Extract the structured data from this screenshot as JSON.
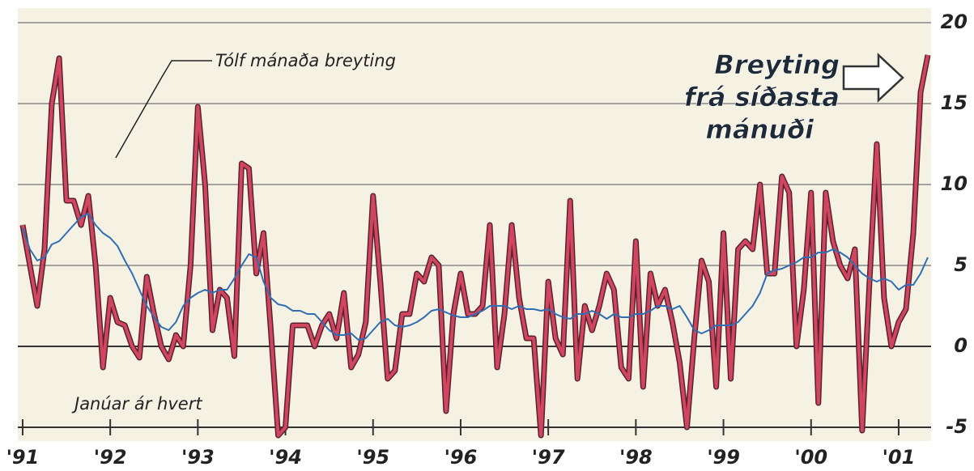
{
  "chart_data": {
    "type": "line",
    "x": [
      1991,
      1991.083,
      1991.167,
      1991.25,
      1991.333,
      1991.417,
      1991.5,
      1991.583,
      1991.667,
      1991.75,
      1991.833,
      1991.917,
      1992,
      1992.083,
      1992.167,
      1992.25,
      1992.333,
      1992.417,
      1992.5,
      1992.583,
      1992.667,
      1992.75,
      1992.833,
      1992.917,
      1993,
      1993.083,
      1993.167,
      1993.25,
      1993.333,
      1993.417,
      1993.5,
      1993.583,
      1993.667,
      1993.75,
      1993.833,
      1993.917,
      1994,
      1994.083,
      1994.167,
      1994.25,
      1994.333,
      1994.417,
      1994.5,
      1994.583,
      1994.667,
      1994.75,
      1994.833,
      1994.917,
      1995,
      1995.083,
      1995.167,
      1995.25,
      1995.333,
      1995.417,
      1995.5,
      1995.583,
      1995.667,
      1995.75,
      1995.833,
      1995.917,
      1996,
      1996.083,
      1996.167,
      1996.25,
      1996.333,
      1996.417,
      1996.5,
      1996.583,
      1996.667,
      1996.75,
      1996.833,
      1996.917,
      1997,
      1997.083,
      1997.167,
      1997.25,
      1997.333,
      1997.417,
      1997.5,
      1997.583,
      1997.667,
      1997.75,
      1997.833,
      1997.917,
      1998,
      1998.083,
      1998.167,
      1998.25,
      1998.333,
      1998.417,
      1998.5,
      1998.583,
      1998.667,
      1998.75,
      1998.833,
      1998.917,
      1999,
      1999.083,
      1999.167,
      1999.25,
      1999.333,
      1999.417,
      1999.5,
      1999.583,
      1999.667,
      1999.75,
      1999.833,
      1999.917,
      2000,
      2000.083,
      2000.167,
      2000.25,
      2000.333,
      2000.417,
      2000.5,
      2000.583,
      2000.667,
      2000.75,
      2000.833,
      2000.917,
      2001,
      2001.083,
      2001.167,
      2001.25,
      2001.333
    ],
    "series": [
      {
        "color": "#d0465f",
        "values": [
          7.5,
          5,
          2.5,
          6,
          15,
          17.8,
          9,
          9,
          7.5,
          9.3,
          5,
          -1.3,
          3,
          1.5,
          1.3,
          0,
          -0.7,
          4.3,
          2,
          0,
          -0.8,
          0.7,
          0,
          5,
          14.8,
          10,
          1,
          3.5,
          3,
          -0.6,
          11.3,
          11,
          4.5,
          7,
          1,
          -5.5,
          -5,
          1.3,
          1.3,
          1.3,
          0,
          1.3,
          2,
          0.5,
          3.3,
          -1.3,
          -0.5,
          1.5,
          9.3,
          4,
          -2,
          -1.5,
          2,
          2,
          4.5,
          4,
          5.5,
          5,
          -4,
          2,
          4.5,
          2,
          2,
          2.5,
          7.5,
          -1.3,
          2,
          7.5,
          3,
          0.5,
          0.5,
          -5.5,
          4,
          0.5,
          -0.5,
          9,
          -2,
          2.5,
          1,
          2.5,
          4.5,
          3.5,
          -1.3,
          -2,
          6.5,
          -2.5,
          4.5,
          2.5,
          3.5,
          1.5,
          -1,
          -5,
          0.5,
          5.3,
          4,
          -2.5,
          7,
          -2,
          6,
          6.5,
          6,
          10,
          4.5,
          4.5,
          10.5,
          9.5,
          0,
          3.5,
          9.5,
          -3.5,
          9.5,
          6.5,
          5,
          4.2,
          6,
          -5.2,
          4,
          12.5,
          3,
          0,
          1.5,
          2.3,
          7,
          15.7,
          18
        ]
      },
      {
        "name": "Tólf mánaða breyting",
        "color": "#2f6db5",
        "values": [
          7.3,
          6,
          5.3,
          5.5,
          6.3,
          6.5,
          7,
          7.5,
          8,
          8.2,
          7.5,
          7,
          6.7,
          6.2,
          5.3,
          4.5,
          3.5,
          2.5,
          1.8,
          1.2,
          1,
          1.5,
          2.5,
          3,
          3.3,
          3.5,
          3.3,
          3.5,
          3.5,
          4.2,
          5,
          5.7,
          5.5,
          4,
          3,
          2.6,
          2.5,
          2.2,
          2.2,
          2,
          2,
          1.5,
          1,
          0.7,
          0.7,
          0.8,
          0.4,
          0.5,
          1,
          1.5,
          1.7,
          1.3,
          1.2,
          1.3,
          1.5,
          1.8,
          2.2,
          2.3,
          2.1,
          1.9,
          1.8,
          1.8,
          2,
          2.2,
          2.5,
          2.5,
          2.5,
          2.3,
          2.5,
          2.3,
          2.3,
          2.2,
          2.3,
          2,
          1.8,
          1.7,
          2,
          2,
          2.2,
          2,
          1.7,
          2,
          1.8,
          1.8,
          2,
          2,
          2.2,
          2.5,
          2.5,
          2.3,
          2.5,
          1.8,
          1,
          0.8,
          1,
          1.3,
          1.3,
          1.3,
          1.5,
          2,
          2.5,
          3.3,
          4.5,
          4.7,
          4.8,
          5,
          5.2,
          5.5,
          5.5,
          5.8,
          5.8,
          6,
          5.8,
          5.5,
          5,
          4.5,
          4.2,
          4,
          4.2,
          4,
          3.5,
          3.8,
          3.8,
          4.5,
          5.5
        ]
      }
    ],
    "callout": [
      "Breyting",
      "frá síðasta",
      "mánuði"
    ],
    "x_note": "Janúar ár hvert",
    "xlim": [
      1990.945,
      2001.37
    ],
    "xticks": [
      {
        "value": 1991,
        "label": "'91"
      },
      {
        "value": 1992,
        "label": "'92"
      },
      {
        "value": 1993,
        "label": "'93"
      },
      {
        "value": 1994,
        "label": "'94"
      },
      {
        "value": 1995,
        "label": "'95"
      },
      {
        "value": 1996,
        "label": "'96"
      },
      {
        "value": 1997,
        "label": "'97"
      },
      {
        "value": 1998,
        "label": "'98"
      },
      {
        "value": 1999,
        "label": "'99"
      },
      {
        "value": 2000,
        "label": "'00"
      },
      {
        "value": 2001,
        "label": "'01"
      }
    ],
    "ylim": [
      -5.85,
      20.9
    ],
    "yticks": [
      -5,
      0,
      5,
      10,
      15,
      20
    ],
    "grid": true
  }
}
